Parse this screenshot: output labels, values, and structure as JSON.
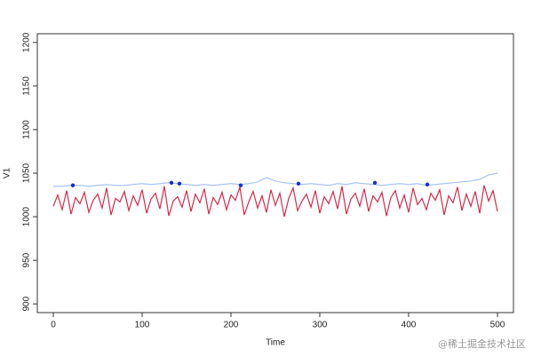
{
  "chart_data": {
    "type": "line",
    "x_label": "Time",
    "y_label": "V1",
    "xlim": [
      -18,
      518
    ],
    "ylim": [
      890,
      1210
    ],
    "xticks": [
      0,
      100,
      200,
      300,
      400,
      500
    ],
    "yticks": [
      900,
      950,
      1000,
      1050,
      1100,
      1150,
      1200
    ],
    "series": [
      {
        "style": "line",
        "color": "#a9c4f5",
        "x": [
          0,
          10,
          20,
          30,
          40,
          50,
          60,
          70,
          80,
          90,
          100,
          110,
          120,
          130,
          140,
          150,
          160,
          170,
          180,
          190,
          200,
          210,
          220,
          230,
          240,
          250,
          260,
          270,
          280,
          290,
          300,
          310,
          320,
          330,
          340,
          350,
          360,
          370,
          380,
          390,
          400,
          410,
          420,
          430,
          440,
          450,
          460,
          470,
          480,
          490,
          500
        ],
        "values": [
          1035,
          1035,
          1036,
          1036,
          1035,
          1036,
          1037,
          1036,
          1036,
          1037,
          1038,
          1037,
          1038,
          1039,
          1038,
          1037,
          1036,
          1037,
          1036,
          1037,
          1038,
          1037,
          1038,
          1040,
          1045,
          1041,
          1039,
          1038,
          1037,
          1038,
          1037,
          1036,
          1038,
          1037,
          1039,
          1038,
          1037,
          1036,
          1037,
          1038,
          1037,
          1038,
          1036,
          1037,
          1038,
          1039,
          1040,
          1041,
          1043,
          1048,
          1050
        ]
      },
      {
        "style": "line",
        "color": "#d7294a",
        "x": [
          0,
          5,
          10,
          15,
          20,
          25,
          30,
          35,
          40,
          45,
          50,
          55,
          60,
          65,
          70,
          75,
          80,
          85,
          90,
          95,
          100,
          105,
          110,
          115,
          120,
          125,
          130,
          135,
          140,
          145,
          150,
          155,
          160,
          165,
          170,
          175,
          180,
          185,
          190,
          195,
          200,
          205,
          210,
          215,
          220,
          225,
          230,
          235,
          240,
          245,
          250,
          255,
          260,
          265,
          270,
          275,
          280,
          285,
          290,
          295,
          300,
          305,
          310,
          315,
          320,
          325,
          330,
          335,
          340,
          345,
          350,
          355,
          360,
          365,
          370,
          375,
          380,
          385,
          390,
          395,
          400,
          405,
          410,
          415,
          420,
          425,
          430,
          435,
          440,
          445,
          450,
          455,
          460,
          465,
          470,
          475,
          480,
          485,
          490,
          495,
          500
        ],
        "values": [
          1012,
          1025,
          1008,
          1030,
          1003,
          1022,
          1015,
          1028,
          1005,
          1019,
          1026,
          1010,
          1033,
          1002,
          1021,
          1017,
          1029,
          1007,
          1024,
          1013,
          1031,
          1004,
          1020,
          1027,
          1009,
          1035,
          1001,
          1018,
          1023,
          1011,
          1030,
          1006,
          1026,
          1016,
          1032,
          1003,
          1022,
          1014,
          1028,
          1008,
          1025,
          1019,
          1034,
          1002,
          1017,
          1029,
          1010,
          1024,
          1005,
          1031,
          1013,
          1027,
          1000,
          1021,
          1033,
          1007,
          1018,
          1026,
          1011,
          1030,
          1004,
          1023,
          1015,
          1029,
          1009,
          1035,
          1003,
          1020,
          1027,
          1012,
          1032,
          1006,
          1024,
          1017,
          1028,
          1001,
          1022,
          1030,
          1010,
          1025,
          1005,
          1033,
          1014,
          1021,
          1008,
          1027,
          1019,
          1031,
          1002,
          1024,
          1016,
          1034,
          1007,
          1026,
          1012,
          1029,
          1004,
          1036,
          1018,
          1030,
          1006
        ]
      },
      {
        "style": "points",
        "color": "#1a2fc9",
        "x": [
          22,
          133,
          142,
          211,
          276,
          362,
          421
        ],
        "values": [
          1036,
          1039,
          1038,
          1036,
          1038,
          1039,
          1037
        ]
      }
    ]
  },
  "watermark": "@稀土掘金技术社区"
}
